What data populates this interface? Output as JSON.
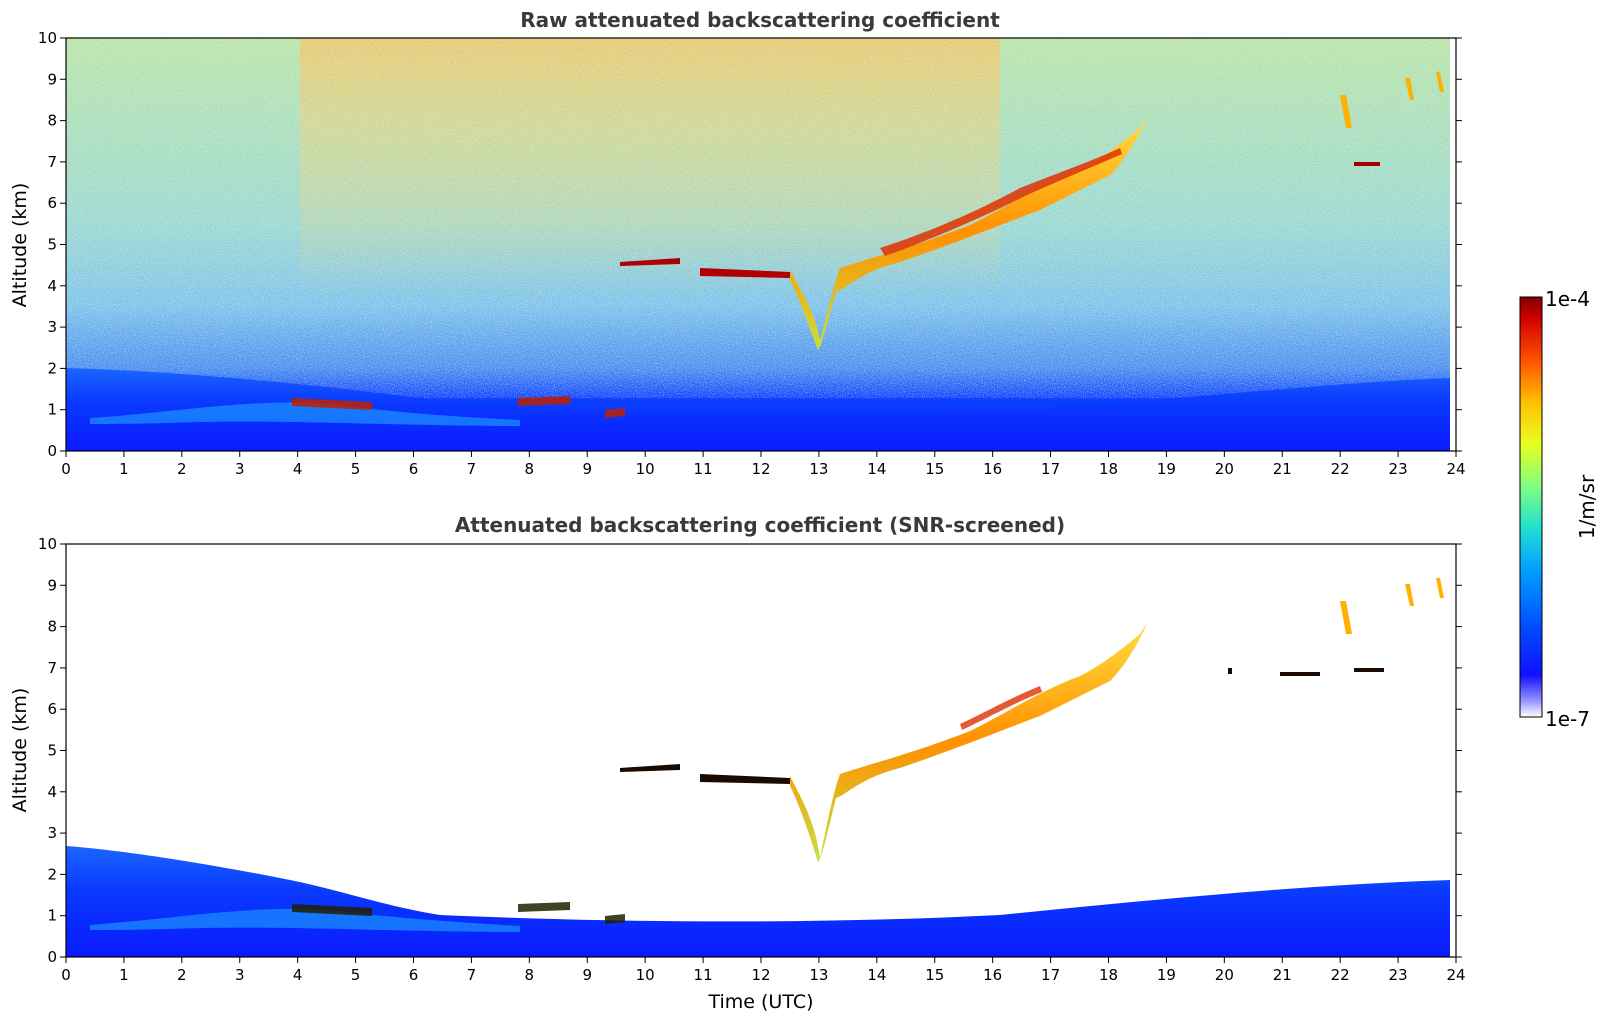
{
  "chart_data": [
    {
      "type": "heatmap",
      "title": "Raw attenuated backscattering coefficient",
      "xlabel": "",
      "ylabel": "Altitude (km)",
      "xlim": [
        0,
        24
      ],
      "ylim": [
        0,
        10
      ],
      "xticks": [
        "0",
        "1",
        "2",
        "3",
        "4",
        "5",
        "6",
        "7",
        "8",
        "9",
        "10",
        "11",
        "12",
        "13",
        "14",
        "15",
        "16",
        "17",
        "18",
        "19",
        "20",
        "21",
        "22",
        "23",
        "24"
      ],
      "yticks": [
        "0",
        "1",
        "2",
        "3",
        "4",
        "5",
        "6",
        "7",
        "8",
        "9",
        "10"
      ],
      "data_end_time": 23.7,
      "colorbar": {
        "label": "1/m/sr",
        "min_label": "1e-7",
        "max_label": "1e-4",
        "scale": "log"
      },
      "features": [
        {
          "name": "boundary-layer",
          "time": [
            0,
            23.7
          ],
          "altitude_top": [
            2.0,
            1.5,
            1.2,
            1.3,
            1.6
          ]
        },
        {
          "name": "noise-background",
          "time": [
            0,
            23.7
          ],
          "altitude": [
            2,
            10
          ]
        },
        {
          "name": "cloud-layer",
          "time": [
            9.5,
            18.5
          ],
          "altitude": [
            4.5,
            4.3,
            3.0,
            4.2,
            5.0,
            6.0,
            6.8,
            7.5,
            8.0
          ]
        },
        {
          "name": "low-clouds",
          "time": [
            3.8,
            11.0
          ],
          "altitude": [
            0.8,
            1.5
          ]
        },
        {
          "name": "cirrus",
          "time": [
            21.8,
            23.7
          ],
          "altitude": [
            6.8,
            9.0
          ]
        }
      ]
    },
    {
      "type": "heatmap",
      "title": "Attenuated backscattering coefficient (SNR-screened)",
      "xlabel": "Time (UTC)",
      "ylabel": "Altitude (km)",
      "xlim": [
        0,
        24
      ],
      "ylim": [
        0,
        10
      ],
      "xticks": [
        "0",
        "1",
        "2",
        "3",
        "4",
        "5",
        "6",
        "7",
        "8",
        "9",
        "10",
        "11",
        "12",
        "13",
        "14",
        "15",
        "16",
        "17",
        "18",
        "19",
        "20",
        "21",
        "22",
        "23",
        "24"
      ],
      "yticks": [
        "0",
        "1",
        "2",
        "3",
        "4",
        "5",
        "6",
        "7",
        "8",
        "9",
        "10"
      ],
      "data_end_time": 23.7,
      "colorbar": {
        "label": "1/m/sr",
        "min_label": "1e-7",
        "max_label": "1e-4",
        "scale": "log"
      },
      "features": [
        {
          "name": "boundary-layer",
          "time": [
            0,
            23.7
          ],
          "altitude_top": [
            2.6,
            1.5,
            1.0,
            1.3,
            1.9
          ]
        },
        {
          "name": "cloud-layer",
          "time": [
            9.5,
            18.5
          ],
          "altitude": [
            4.5,
            4.3,
            2.5,
            4.2,
            5.0,
            6.0,
            6.8,
            7.5,
            8.0
          ]
        },
        {
          "name": "low-clouds",
          "time": [
            3.8,
            11.0
          ],
          "altitude": [
            0.8,
            1.5
          ]
        },
        {
          "name": "cirrus",
          "time": [
            21.8,
            23.7
          ],
          "altitude": [
            6.8,
            9.0
          ]
        }
      ]
    }
  ]
}
